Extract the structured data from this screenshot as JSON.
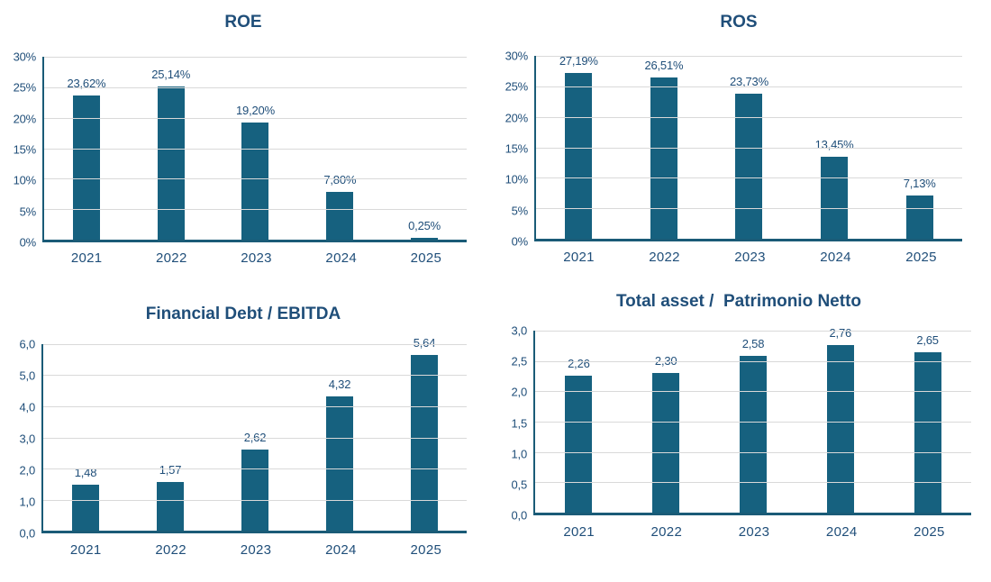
{
  "colors": {
    "bar": "#16617F",
    "text": "#1F4E79",
    "gridline": "#D9D9D9",
    "axis": "#1A5B77",
    "background": "#FFFFFF"
  },
  "chart_data": [
    {
      "type": "bar",
      "title": "ROE",
      "categories": [
        "2021",
        "2022",
        "2023",
        "2024",
        "2025"
      ],
      "values": [
        23.62,
        25.14,
        19.2,
        7.8,
        0.25
      ],
      "value_labels": [
        "23,62%",
        "25,14%",
        "19,20%",
        "7,80%",
        "0,25%"
      ],
      "ylim": [
        0,
        30
      ],
      "ytick_step": 5,
      "ytick_labels": [
        "30%",
        "25%",
        "20%",
        "15%",
        "10%",
        "5%",
        "0%"
      ],
      "grid": true,
      "legend": "none"
    },
    {
      "type": "bar",
      "title": "ROS",
      "categories": [
        "2021",
        "2022",
        "2023",
        "2024",
        "2025"
      ],
      "values": [
        27.19,
        26.51,
        23.73,
        13.45,
        7.13
      ],
      "value_labels": [
        "27,19%",
        "26,51%",
        "23,73%",
        "13,45%",
        "7,13%"
      ],
      "ylim": [
        0,
        30
      ],
      "ytick_step": 5,
      "ytick_labels": [
        "30%",
        "25%",
        "20%",
        "15%",
        "10%",
        "5%",
        "0%"
      ],
      "grid": true,
      "legend": "none"
    },
    {
      "type": "bar",
      "title": "Financial Debt / EBITDA",
      "categories": [
        "2021",
        "2022",
        "2023",
        "2024",
        "2025"
      ],
      "values": [
        1.48,
        1.57,
        2.62,
        4.32,
        5.64
      ],
      "value_labels": [
        "1,48",
        "1,57",
        "2,62",
        "4,32",
        "5,64"
      ],
      "ylim": [
        0,
        6
      ],
      "ytick_step": 1,
      "ytick_labels": [
        "6,0",
        "5,0",
        "4,0",
        "3,0",
        "2,0",
        "1,0",
        "0,0"
      ],
      "grid": true,
      "legend": "none"
    },
    {
      "type": "bar",
      "title": "Total asset /  Patrimonio Netto",
      "categories": [
        "2021",
        "2022",
        "2023",
        "2024",
        "2025"
      ],
      "values": [
        2.26,
        2.3,
        2.58,
        2.76,
        2.65
      ],
      "value_labels": [
        "2,26",
        "2,30",
        "2,58",
        "2,76",
        "2,65"
      ],
      "ylim": [
        0,
        3
      ],
      "ytick_step": 0.5,
      "ytick_labels": [
        "3,0",
        "2,5",
        "2,0",
        "1,5",
        "1,0",
        "0,5",
        "0,0"
      ],
      "grid": true,
      "legend": "none"
    }
  ]
}
